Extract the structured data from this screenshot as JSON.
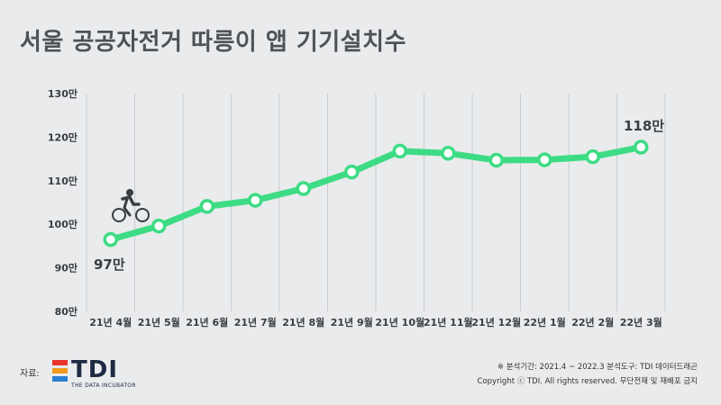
{
  "title": "서울 공공자전거 따릉이 앱 기기설치수",
  "chart_data": {
    "type": "line",
    "categories": [
      "21년 4월",
      "21년 5월",
      "21년 6월",
      "21년 7월",
      "21년 8월",
      "21년 9월",
      "21년 10월",
      "21년 11월",
      "21년 12월",
      "22년 1월",
      "22년 2월",
      "22년 3월"
    ],
    "series": [
      {
        "values": [
          96.5,
          99.6,
          104.1,
          105.5,
          108.2,
          112.0,
          116.8,
          116.3,
          114.7,
          114.8,
          115.5,
          117.7
        ]
      }
    ],
    "yticks": [
      "80만",
      "90만",
      "100만",
      "110만",
      "120만",
      "130만"
    ],
    "ylim": [
      80,
      130
    ],
    "annotations": {
      "start": "97만",
      "end": "118만"
    },
    "line_color": "#3ddc84",
    "grid": "vertical",
    "xlabel": "",
    "ylabel": ""
  },
  "source": {
    "label": "자료:",
    "logo_text": "TDI",
    "logo_subtitle": "THE DATA INCUBATOR",
    "logo_colors": [
      "#e8352b",
      "#f39a1f",
      "#2a7fd4"
    ]
  },
  "footnote": {
    "line1": "※ 분석기간: 2021.4 ~ 2022.3   분석도구: TDI 데이터드래곤",
    "line2": "Copyright ⓒ TDI. All rights reserved. 무단전재 및 재배포 금지"
  },
  "icons": {
    "cyclist": "cyclist-icon"
  }
}
